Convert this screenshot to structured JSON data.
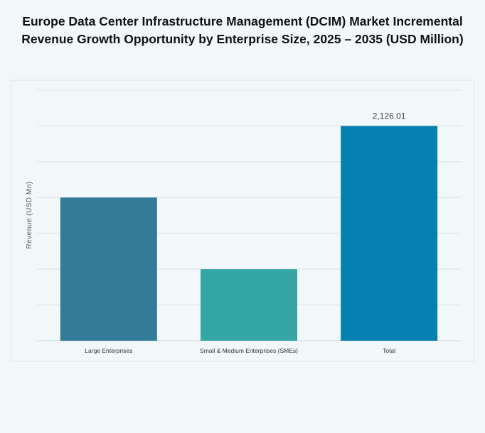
{
  "title_lines": [
    "Europe Data Center Infrastructure Management (DCIM) Market Incremental",
    "Revenue Growth Opportunity by Enterprise Size, 2025 – 2035 (USD Million)"
  ],
  "chart_data": {
    "type": "bar",
    "title": "Europe Data Center Infrastructure Management (DCIM) Market Incremental Revenue Growth Opportunity by Enterprise Size, 2025 – 2035 (USD Million)",
    "xlabel": "",
    "ylabel": "Revenue (USD Mn)",
    "categories": [
      "Large Enterprises",
      "Small & Medium Enterprises (SMEs)",
      "Total"
    ],
    "values": [
      1417.34,
      708.67,
      2126.01
    ],
    "data_labels": [
      "",
      "",
      "2,126.01"
    ],
    "colors": [
      "#327b99",
      "#35a6a6",
      "#0680b0"
    ],
    "ylim": [
      0,
      2480.35
    ],
    "grid": true,
    "y_tick_labels_shown": false,
    "legend": "none"
  }
}
